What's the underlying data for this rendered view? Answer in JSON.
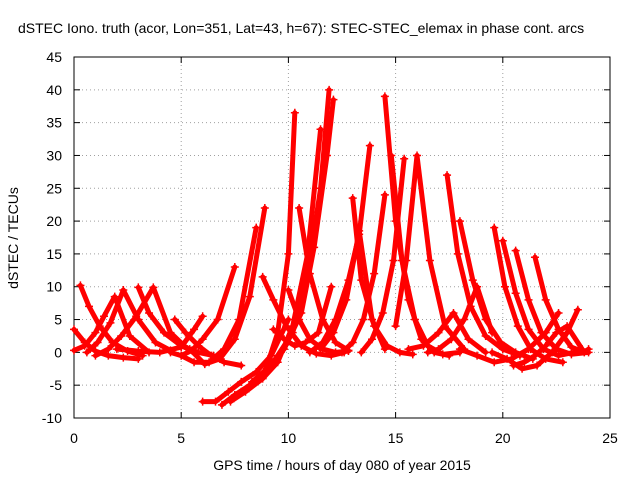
{
  "chart_data": {
    "type": "scatter",
    "title": "dSTEC Iono. truth (acor, Lon=351, Lat=43, h=67): STEC-STEC_elemax in phase cont. arcs",
    "xlabel": "GPS time / hours of day 080 of year 2015",
    "ylabel": "dSTEC  / TECUs",
    "xlim": [
      0,
      25
    ],
    "ylim": [
      -10,
      45
    ],
    "x_ticks": [
      0,
      5,
      10,
      15,
      20,
      25
    ],
    "y_ticks": [
      -10,
      -5,
      0,
      5,
      10,
      15,
      20,
      25,
      30,
      35,
      40,
      45
    ],
    "x_tick_labels": [
      "0",
      "5",
      "10",
      "15",
      "20",
      "25"
    ],
    "y_tick_labels": [
      "-10",
      "-5",
      "0",
      "5",
      "10",
      "15",
      "20",
      "25",
      "30",
      "35",
      "40",
      "45"
    ],
    "grid": true,
    "marker": "plus",
    "color": "#ff0000",
    "series": [
      {
        "x": [
          0.0,
          0.5,
          1.0,
          1.6,
          2.3,
          3.0
        ],
        "y": [
          3.5,
          1.5,
          0.2,
          -0.5,
          -0.8,
          -1.0
        ]
      },
      {
        "x": [
          0.3,
          0.7,
          1.2,
          1.8,
          2.5,
          3.2
        ],
        "y": [
          10.2,
          7.0,
          4.0,
          1.5,
          0.2,
          -0.5
        ]
      },
      {
        "x": [
          0.0,
          0.5,
          1.0,
          1.4,
          1.9,
          2.6,
          3.5
        ],
        "y": [
          0.3,
          1.0,
          3.0,
          5.5,
          8.5,
          2.5,
          0.0
        ]
      },
      {
        "x": [
          0.6,
          1.1,
          1.7,
          2.3,
          3.0,
          3.8,
          4.5
        ],
        "y": [
          0.0,
          1.5,
          4.5,
          9.5,
          5.0,
          1.5,
          0.3
        ]
      },
      {
        "x": [
          1.0,
          1.6,
          2.2,
          2.9,
          3.7,
          4.5,
          5.3
        ],
        "y": [
          -0.5,
          0.5,
          2.5,
          5.5,
          9.9,
          3.0,
          0.5
        ]
      },
      {
        "x": [
          3.0,
          3.5,
          4.2,
          5.0,
          5.8,
          6.5
        ],
        "y": [
          9.9,
          6.0,
          3.0,
          1.0,
          0.0,
          -0.5
        ]
      },
      {
        "x": [
          2.0,
          3.0,
          4.0,
          5.0,
          5.6,
          6.0
        ],
        "y": [
          0.5,
          0.2,
          0.0,
          0.8,
          3.5,
          5.5
        ]
      },
      {
        "x": [
          4.7,
          5.2,
          5.8,
          6.4,
          7.0,
          7.8
        ],
        "y": [
          5.0,
          3.0,
          1.0,
          -0.5,
          -1.5,
          -2.0
        ]
      },
      {
        "x": [
          4.5,
          5.0,
          5.5,
          6.0,
          6.7,
          7.5
        ],
        "y": [
          0.0,
          -0.5,
          0.3,
          2.0,
          5.0,
          13.0
        ]
      },
      {
        "x": [
          5.0,
          5.6,
          6.3,
          7.0,
          7.7,
          8.5
        ],
        "y": [
          -0.5,
          -1.5,
          -1.5,
          0.5,
          5.0,
          19.0
        ]
      },
      {
        "x": [
          5.4,
          6.1,
          6.8,
          7.5,
          8.2,
          8.9
        ],
        "y": [
          0.5,
          -1.8,
          -1.0,
          2.0,
          8.5,
          22.0
        ]
      },
      {
        "x": [
          6.0,
          6.6,
          7.2,
          7.8,
          8.5,
          9.2,
          10.0
        ],
        "y": [
          -7.5,
          -7.5,
          -6.0,
          -4.5,
          -3.0,
          -0.5,
          5.0
        ]
      },
      {
        "x": [
          6.9,
          7.5,
          8.2,
          8.9,
          9.5,
          10.0,
          10.3
        ],
        "y": [
          -8.0,
          -6.5,
          -5.0,
          -3.0,
          3.0,
          15.0,
          36.5
        ]
      },
      {
        "x": [
          7.3,
          8.0,
          8.8,
          9.5,
          10.2,
          10.9,
          11.5
        ],
        "y": [
          -7.5,
          -6.0,
          -4.0,
          -1.5,
          4.0,
          15.0,
          34.0
        ]
      },
      {
        "x": [
          7.8,
          8.6,
          9.4,
          10.2,
          10.9,
          11.5,
          11.9
        ],
        "y": [
          -6.0,
          -4.0,
          -1.0,
          3.0,
          12.0,
          25.0,
          40.0
        ]
      },
      {
        "x": [
          8.3,
          9.0,
          9.8,
          10.6,
          11.2,
          11.8,
          12.1
        ],
        "y": [
          -4.5,
          -2.5,
          0.5,
          6.0,
          16.0,
          30.0,
          38.5
        ]
      },
      {
        "x": [
          8.8,
          9.3,
          9.9,
          10.6,
          11.3,
          12.0,
          12.6
        ],
        "y": [
          11.5,
          8.0,
          4.0,
          1.0,
          -0.2,
          -0.5,
          0.0
        ]
      },
      {
        "x": [
          9.3,
          9.8,
          10.3,
          10.8,
          11.4,
          12.0
        ],
        "y": [
          3.5,
          2.0,
          1.0,
          1.5,
          3.0,
          10.0
        ]
      },
      {
        "x": [
          10.0,
          10.5,
          11.0,
          11.6,
          12.2,
          12.8
        ],
        "y": [
          9.5,
          5.0,
          2.0,
          0.5,
          0.0,
          0.2
        ]
      },
      {
        "x": [
          10.5,
          11.0,
          11.6,
          12.2,
          12.8
        ],
        "y": [
          22.0,
          12.0,
          5.0,
          1.5,
          0.3
        ]
      },
      {
        "x": [
          11.0,
          11.6,
          12.2,
          12.8,
          13.3,
          13.8
        ],
        "y": [
          0.0,
          1.5,
          5.0,
          11.0,
          18.0,
          31.5
        ]
      },
      {
        "x": [
          11.5,
          12.1,
          12.7,
          13.3,
          13.9,
          14.5
        ],
        "y": [
          0.5,
          3.0,
          8.0,
          18.5,
          5.0,
          0.5
        ]
      },
      {
        "x": [
          12.5,
          13.0,
          13.5,
          14.0,
          14.5
        ],
        "y": [
          0.0,
          1.5,
          5.0,
          12.0,
          24.0
        ]
      },
      {
        "x": [
          13.0,
          13.4,
          14.0,
          14.6,
          15.2,
          15.8
        ],
        "y": [
          23.5,
          11.0,
          4.0,
          1.0,
          0.0,
          -0.3
        ]
      },
      {
        "x": [
          13.4,
          13.9,
          14.4,
          14.9,
          15.4
        ],
        "y": [
          0.0,
          2.0,
          6.0,
          14.0,
          29.5
        ]
      },
      {
        "x": [
          14.5,
          15.0,
          15.6,
          16.2,
          16.8,
          17.5
        ],
        "y": [
          39.0,
          20.0,
          8.0,
          2.0,
          0.0,
          -0.5
        ]
      },
      {
        "x": [
          14.8,
          15.3,
          15.9,
          16.5,
          17.2,
          18.0
        ],
        "y": [
          30.0,
          14.0,
          5.0,
          1.0,
          -0.3,
          0.0
        ]
      },
      {
        "x": [
          15.0,
          15.5,
          16.0,
          16.6,
          17.3,
          18.2
        ],
        "y": [
          4.0,
          14.0,
          30.0,
          14.0,
          4.0,
          0.5
        ]
      },
      {
        "x": [
          15.6,
          16.3,
          17.0,
          17.7,
          18.4,
          19.2
        ],
        "y": [
          0.5,
          1.0,
          3.0,
          6.0,
          2.0,
          0.0
        ]
      },
      {
        "x": [
          16.5,
          17.0,
          17.6,
          18.2,
          18.8,
          19.5
        ],
        "y": [
          0.0,
          0.5,
          2.0,
          5.0,
          10.0,
          3.0
        ]
      },
      {
        "x": [
          17.4,
          17.9,
          18.5,
          19.2,
          20.0,
          20.8
        ],
        "y": [
          27.0,
          15.0,
          7.0,
          2.5,
          0.5,
          -0.5
        ]
      },
      {
        "x": [
          18.0,
          18.6,
          19.2,
          19.9,
          20.6,
          21.4
        ],
        "y": [
          20.0,
          11.0,
          5.0,
          1.5,
          0.0,
          -1.0
        ]
      },
      {
        "x": [
          19.6,
          20.1,
          20.7,
          21.3,
          22.0,
          22.8
        ],
        "y": [
          19.0,
          10.0,
          4.0,
          0.5,
          -1.0,
          -1.5
        ]
      },
      {
        "x": [
          20.0,
          20.6,
          21.2,
          21.9,
          22.6,
          23.3
        ],
        "y": [
          17.0,
          9.0,
          3.5,
          0.5,
          -0.5,
          0.0
        ]
      },
      {
        "x": [
          20.6,
          21.2,
          21.8,
          22.5,
          23.2,
          24.0
        ],
        "y": [
          15.5,
          8.0,
          3.0,
          0.5,
          -0.3,
          0.0
        ]
      },
      {
        "x": [
          21.5,
          22.0,
          22.6,
          23.2,
          23.8,
          24.0
        ],
        "y": [
          14.5,
          8.0,
          3.5,
          0.8,
          0.0,
          0.5
        ]
      },
      {
        "x": [
          19.5,
          20.2,
          20.9,
          21.6,
          22.3,
          23.0,
          23.5
        ],
        "y": [
          0.0,
          -1.0,
          -2.5,
          -2.0,
          0.0,
          3.0,
          6.5
        ]
      },
      {
        "x": [
          18.0,
          18.8,
          19.6,
          20.4,
          21.2,
          22.0,
          22.6
        ],
        "y": [
          0.5,
          -0.5,
          -1.5,
          -1.0,
          0.5,
          3.0,
          6.0
        ]
      },
      {
        "x": [
          20.5,
          21.0,
          21.5,
          22.0,
          22.5,
          23.0,
          23.7
        ],
        "y": [
          -2.0,
          -1.5,
          -0.5,
          1.0,
          3.0,
          4.0,
          0.5
        ]
      }
    ]
  }
}
